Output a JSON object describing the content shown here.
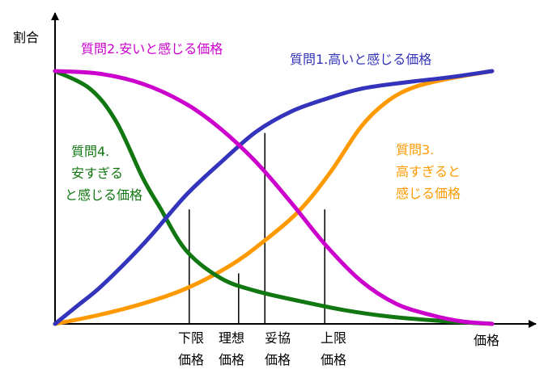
{
  "chart_data": {
    "type": "line",
    "ylabel": "割合",
    "xlabel": "価格",
    "colors": {
      "q1": "#3333bb",
      "q2": "#cc00cc",
      "q3": "#ff9900",
      "q4": "#117711",
      "axis": "#000000"
    },
    "series": [
      {
        "name": "質問1.高いと感じる価格",
        "label_lines": [
          "質問1.高いと感じる価格"
        ],
        "color_key": "q1",
        "x": [
          0,
          0.05,
          0.1,
          0.16,
          0.22,
          0.3,
          0.38,
          0.46,
          0.54,
          0.62,
          0.7,
          0.8,
          0.9,
          1.0
        ],
        "y": [
          0,
          0.07,
          0.14,
          0.24,
          0.35,
          0.51,
          0.64,
          0.76,
          0.84,
          0.89,
          0.93,
          0.955,
          0.975,
          1.0
        ]
      },
      {
        "name": "質問2.安いと感じる価格",
        "label_lines": [
          "質問2.安いと感じる価格"
        ],
        "color_key": "q2",
        "x": [
          0,
          0.1,
          0.2,
          0.3,
          0.38,
          0.46,
          0.54,
          0.62,
          0.7,
          0.78,
          0.86,
          0.93,
          1.0
        ],
        "y": [
          1.0,
          0.99,
          0.95,
          0.87,
          0.77,
          0.64,
          0.48,
          0.31,
          0.17,
          0.08,
          0.035,
          0.01,
          0
        ]
      },
      {
        "name": "質問3.高すぎると感じる価格",
        "label_lines": [
          "質問3.",
          "高すぎると",
          "感じる価格"
        ],
        "color_key": "q3",
        "x": [
          0,
          0.1,
          0.2,
          0.3,
          0.4,
          0.48,
          0.56,
          0.63,
          0.7,
          0.76,
          0.82,
          0.9,
          1.0
        ],
        "y": [
          0,
          0.035,
          0.08,
          0.14,
          0.23,
          0.33,
          0.45,
          0.6,
          0.78,
          0.88,
          0.935,
          0.97,
          1.0
        ]
      },
      {
        "name": "質問4.安すぎると感じる価格",
        "label_lines": [
          "質問4.",
          "安すぎる",
          "と感じる価格"
        ],
        "color_key": "q4",
        "x": [
          0,
          0.08,
          0.14,
          0.2,
          0.24,
          0.3,
          0.38,
          0.46,
          0.56,
          0.66,
          0.76,
          0.88,
          1.0
        ],
        "y": [
          1.0,
          0.93,
          0.8,
          0.58,
          0.46,
          0.29,
          0.18,
          0.13,
          0.09,
          0.055,
          0.03,
          0.012,
          0
        ]
      }
    ],
    "markers": [
      {
        "lines": [
          "下限",
          "価格"
        ],
        "x": 0.307,
        "y": 0.453
      },
      {
        "lines": [
          "理想",
          "価格"
        ],
        "x": 0.42,
        "y": 0.2
      },
      {
        "lines": [
          "妥協",
          "価格"
        ],
        "x": 0.48,
        "y": 0.755
      },
      {
        "lines": [
          "上限",
          "価格"
        ],
        "x": 0.617,
        "y": 0.453
      }
    ],
    "xlim": [
      0,
      1
    ],
    "ylim": [
      0,
      1
    ],
    "ticks": false,
    "grid": false
  }
}
